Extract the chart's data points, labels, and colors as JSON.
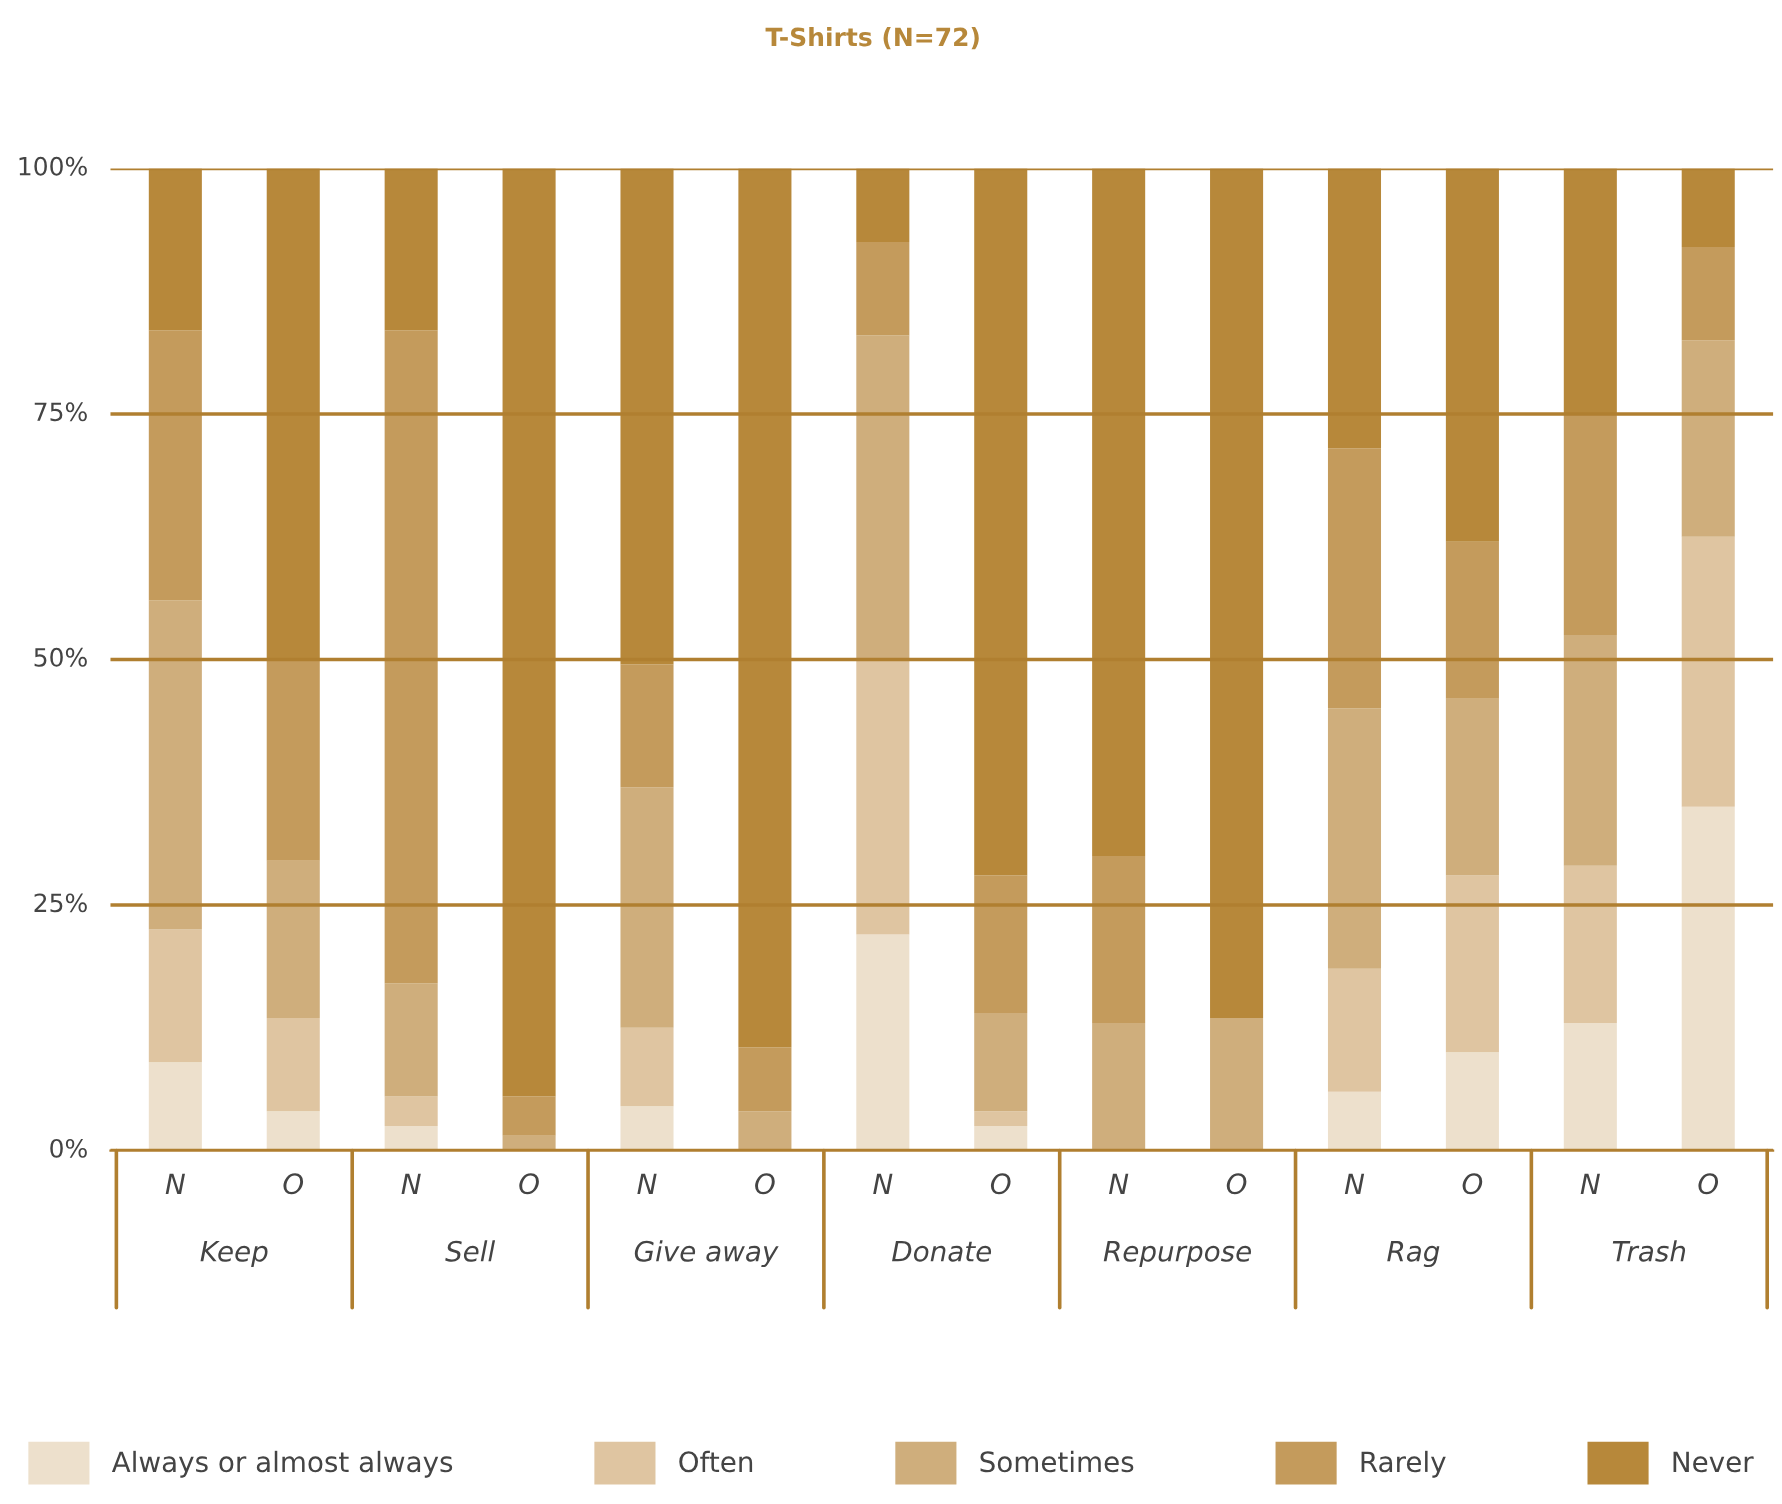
{
  "chart_data": {
    "type": "bar",
    "title": "T-Shirts (N=72)",
    "stacked": true,
    "categories": [
      "N",
      "O",
      "N",
      "O",
      "N",
      "O",
      "N",
      "O",
      "N",
      "O",
      "N",
      "O",
      "N",
      "O"
    ],
    "annotations": [
      "Keep",
      "Sell",
      "Give away",
      "Donate",
      "Repurpose",
      "Rag",
      "Trash"
    ],
    "series": [
      {
        "name": "Always or almost always",
        "color": "#ede0cc",
        "values": [
          9,
          4,
          2.5,
          0,
          4.5,
          0,
          22,
          2.5,
          0,
          0,
          6,
          10,
          13,
          35
        ]
      },
      {
        "name": "Often",
        "color": "#dfc5a1",
        "values": [
          13.5,
          9.5,
          3,
          0,
          8,
          0,
          28,
          1.5,
          0,
          0,
          12.5,
          18,
          16,
          27.5
        ]
      },
      {
        "name": "Sometimes",
        "color": "#cfae7c",
        "values": [
          33.5,
          16,
          11.5,
          1.5,
          24.5,
          4,
          33,
          10,
          13,
          13.5,
          26.5,
          18,
          23.5,
          20
        ]
      },
      {
        "name": "Rarely",
        "color": "#c49b5c",
        "values": [
          27.5,
          20.5,
          66.5,
          4,
          12.5,
          6.5,
          9.5,
          14,
          17,
          0,
          26.5,
          16,
          22.5,
          9.5
        ]
      },
      {
        "name": "Never",
        "color": "#b7883a",
        "values": [
          16.5,
          50,
          16.5,
          94.5,
          50.5,
          89.5,
          7.5,
          72,
          70,
          86.5,
          28.5,
          38,
          25,
          8
        ]
      }
    ],
    "ylim": [
      0,
      100
    ],
    "yticks": [
      {
        "value": 0,
        "label": "0%"
      },
      {
        "value": 25,
        "label": "25%"
      },
      {
        "value": 50,
        "label": "50%"
      },
      {
        "value": 75,
        "label": "75%"
      },
      {
        "value": 100,
        "label": "100%"
      }
    ],
    "grid": "y",
    "legend": "bottom"
  }
}
